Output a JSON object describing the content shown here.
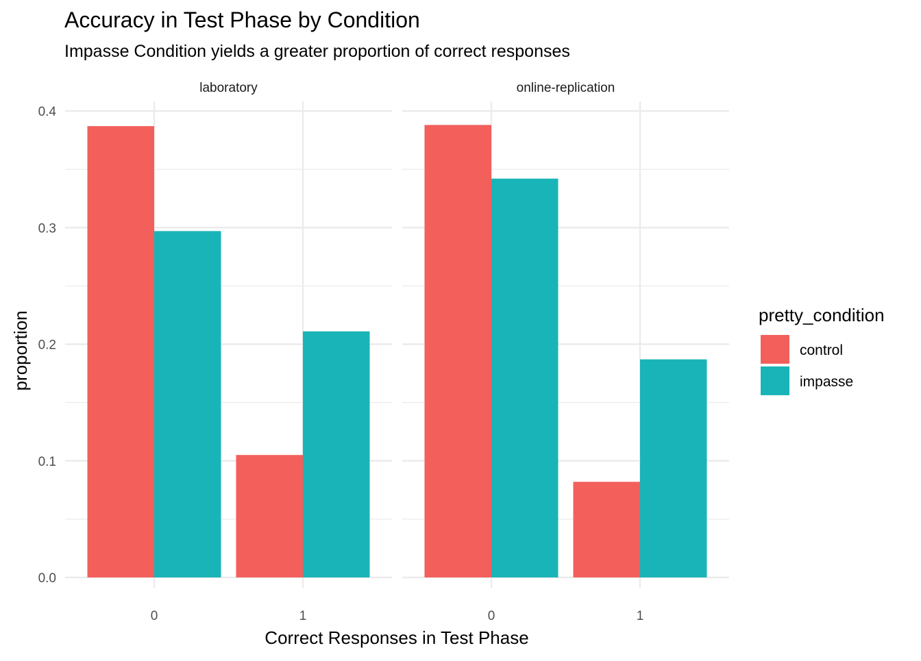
{
  "chart_data": {
    "type": "bar",
    "title": "Accuracy in Test Phase by Condition",
    "subtitle": "Impasse Condition yields a greater proportion of correct responses",
    "xlabel": "Correct Responses in Test Phase",
    "ylabel": "proportion",
    "ylim": [
      0,
      0.4
    ],
    "y_ticks": [
      "0.0",
      "0.1",
      "0.2",
      "0.3",
      "0.4"
    ],
    "y_tick_values": [
      0,
      0.1,
      0.2,
      0.3,
      0.4
    ],
    "grid": true,
    "legend": {
      "title": "pretty_condition",
      "placement": "right",
      "entries": [
        "control",
        "impasse"
      ]
    },
    "colors": {
      "control": "#F35F5B",
      "impasse": "#19B4B8"
    },
    "categories": [
      "0",
      "1"
    ],
    "facets": [
      {
        "label": "laboratory",
        "series": [
          {
            "name": "control",
            "values": [
              0.387,
              0.105
            ]
          },
          {
            "name": "impasse",
            "values": [
              0.297,
              0.211
            ]
          }
        ]
      },
      {
        "label": "online-replication",
        "series": [
          {
            "name": "control",
            "values": [
              0.388,
              0.082
            ]
          },
          {
            "name": "impasse",
            "values": [
              0.342,
              0.187
            ]
          }
        ]
      }
    ]
  }
}
